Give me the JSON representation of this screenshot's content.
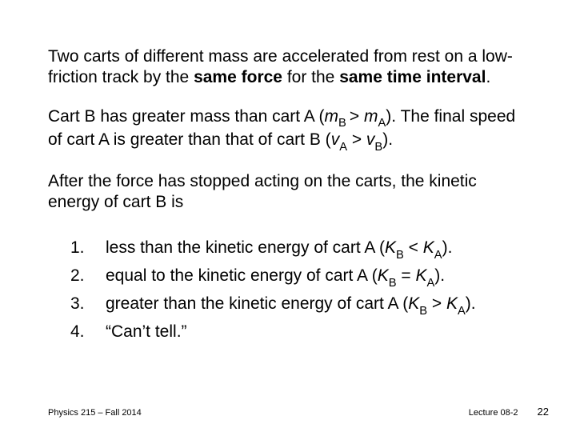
{
  "intro": {
    "part1": "Two carts of different mass are accelerated from rest on a low-friction track by the ",
    "bold1": "same force",
    "part2": " for the ",
    "bold2": "same time interval",
    "part3": "."
  },
  "setup": {
    "part1": "Cart B has greater mass than cart A (",
    "mB": "m",
    "subB1": "B ",
    "gt": "> ",
    "mA": "m",
    "subA1": "A",
    "part2": "). The final speed of cart A is greater than that of cart B (",
    "vA": "v",
    "subA2": "A",
    "mid": " > ",
    "vB": "v",
    "subB2": "B",
    "part3": ")."
  },
  "question": "After the force has stopped acting on the carts, the kinetic energy of cart B is",
  "options": [
    {
      "num": "1.",
      "pre": "less than the kinetic energy of cart A (",
      "KB": "K",
      "subB": "B",
      "op": " < ",
      "KA": "K",
      "subA": "A",
      "post": ")."
    },
    {
      "num": "2.",
      "pre": "equal to the kinetic energy of cart A (",
      "KB": "K",
      "subB": "B",
      "op": " = ",
      "KA": "K",
      "subA": "A",
      "post": ")."
    },
    {
      "num": "3.",
      "pre": "greater than the kinetic energy of cart A (",
      "KB": "K",
      "subB": "B",
      "op": " > ",
      "KA": "K",
      "subA": "A",
      "post": ")."
    },
    {
      "num": "4.",
      "pre": "“Can’t tell.”",
      "KB": "",
      "subB": "",
      "op": "",
      "KA": "",
      "subA": "",
      "post": ""
    }
  ],
  "footer": {
    "left": "Physics 215 – Fall 2014",
    "lecture": "Lecture 08-2",
    "page": "22"
  }
}
